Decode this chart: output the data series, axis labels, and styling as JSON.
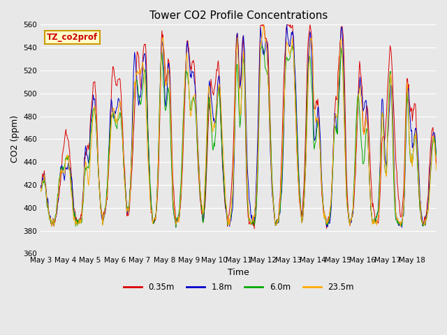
{
  "title": "Tower CO2 Profile Concentrations",
  "xlabel": "Time",
  "ylabel": "CO2 (ppm)",
  "ylim": [
    360,
    560
  ],
  "yticks": [
    360,
    380,
    400,
    420,
    440,
    460,
    480,
    500,
    520,
    540,
    560
  ],
  "annotation_text": "TZ_co2prof",
  "annotation_bg": "#ffffcc",
  "annotation_border": "#cc9900",
  "annotation_fg": "#cc0000",
  "bg_color": "#e0e0e0",
  "plot_bg": "#e8e8e8",
  "grid_color": "white",
  "line_colors": [
    "#dd0000",
    "#0000cc",
    "#00aa00",
    "#ffaa00"
  ],
  "line_labels": [
    "0.35m",
    "1.8m",
    "6.0m",
    "23.5m"
  ],
  "n_days": 16,
  "pts_per_day": 48,
  "start_day": 3,
  "figsize": [
    6.4,
    4.8
  ],
  "dpi": 100
}
